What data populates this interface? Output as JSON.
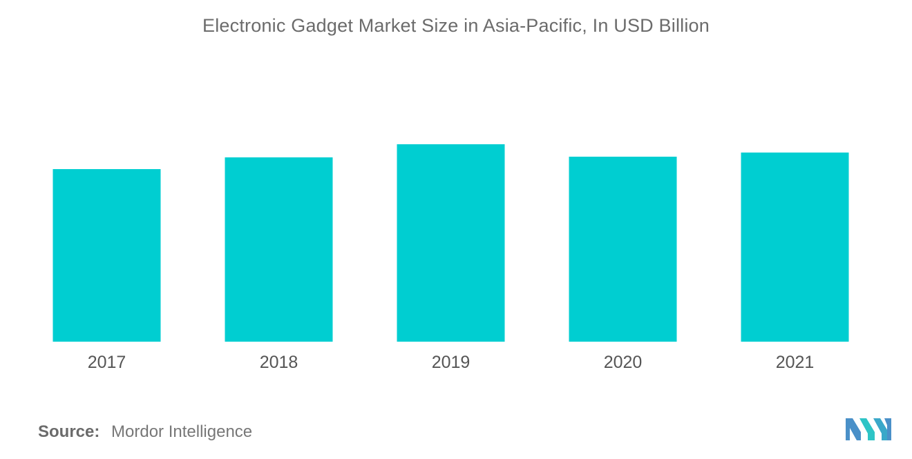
{
  "title": "Electronic Gadget Market Size in Asia-Pacific, In USD Billion",
  "source": {
    "label": "Source:",
    "value": "Mordor Intelligence"
  },
  "logo": {
    "icon": "mordor-intelligence-logo-icon",
    "colors": [
      "#4a90c8",
      "#2ec4c6"
    ]
  },
  "colors": {
    "bar": "#00ced1",
    "axis_text": "#555555",
    "title_text": "#6b6b6b"
  },
  "chart_data": {
    "type": "bar",
    "title": "Electronic Gadget Market Size in Asia-Pacific, In USD Billion",
    "categories": [
      "2017",
      "2018",
      "2019",
      "2020",
      "2021"
    ],
    "values": [
      250,
      267,
      286,
      268,
      274
    ],
    "xlabel": "",
    "ylabel": "",
    "ylim": [
      0,
      400
    ],
    "grid": false,
    "legend": "none"
  }
}
